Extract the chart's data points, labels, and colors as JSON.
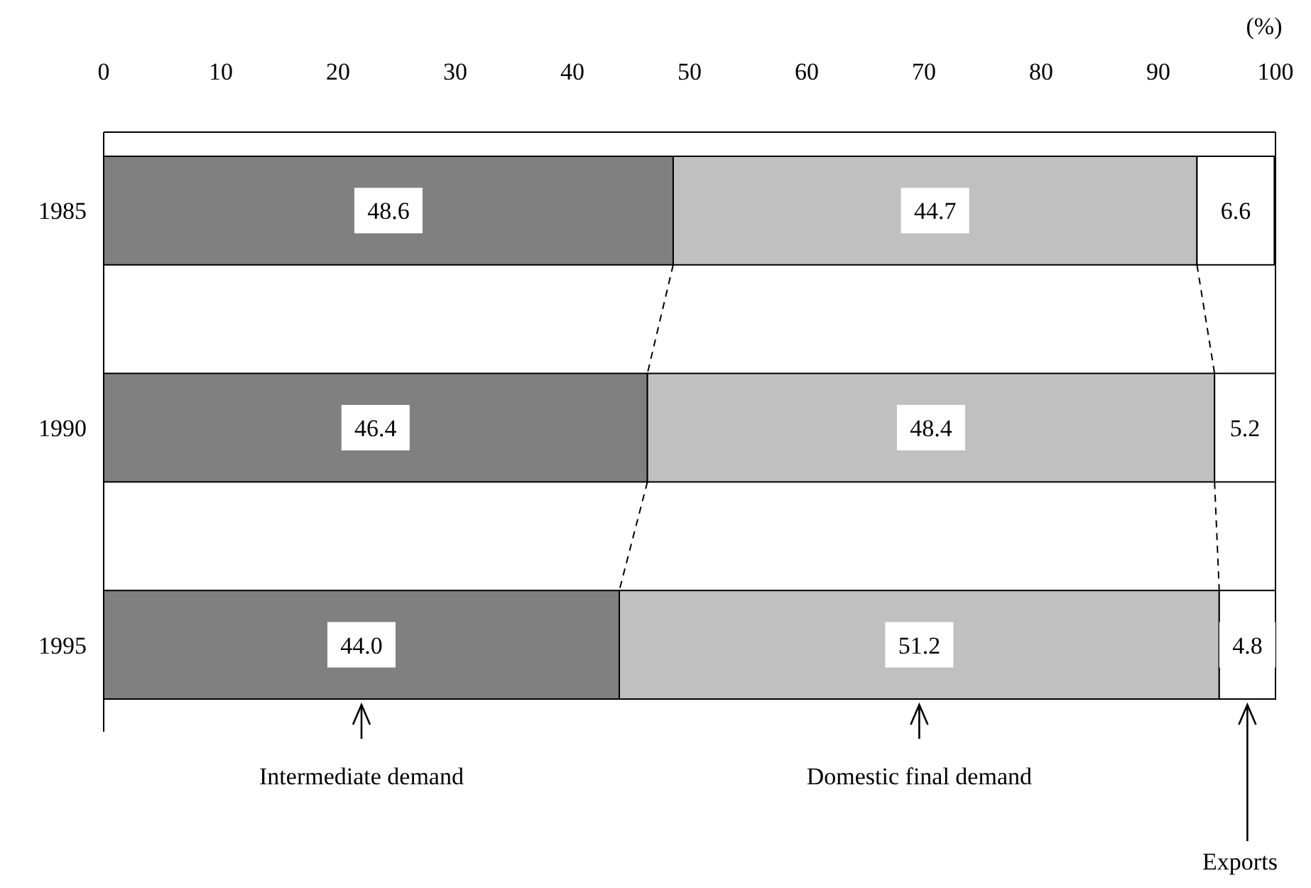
{
  "chart_data": {
    "type": "bar",
    "orientation": "horizontal",
    "stacked": true,
    "xlabel": "(%)",
    "categories": [
      "1985",
      "1990",
      "1995"
    ],
    "series": [
      {
        "name": "Intermediate demand",
        "color": "#808080",
        "values": [
          48.6,
          46.4,
          44.0
        ]
      },
      {
        "name": "Domestic final demand",
        "color": "#c0c0c0",
        "values": [
          44.7,
          48.4,
          51.2
        ]
      },
      {
        "name": "Exports",
        "color": "#ffffff",
        "values": [
          6.6,
          5.2,
          4.8
        ]
      }
    ],
    "value_labels": [
      [
        "48.6",
        "46.4",
        "44.0"
      ],
      [
        "44.7",
        "48.4",
        "51.2"
      ],
      [
        "6.6",
        "5.2",
        "4.8"
      ]
    ],
    "xlim": [
      0,
      100
    ],
    "xticks": [
      0,
      10,
      20,
      30,
      40,
      50,
      60,
      70,
      80,
      90,
      100
    ],
    "legend": "bottom",
    "grid": false
  }
}
